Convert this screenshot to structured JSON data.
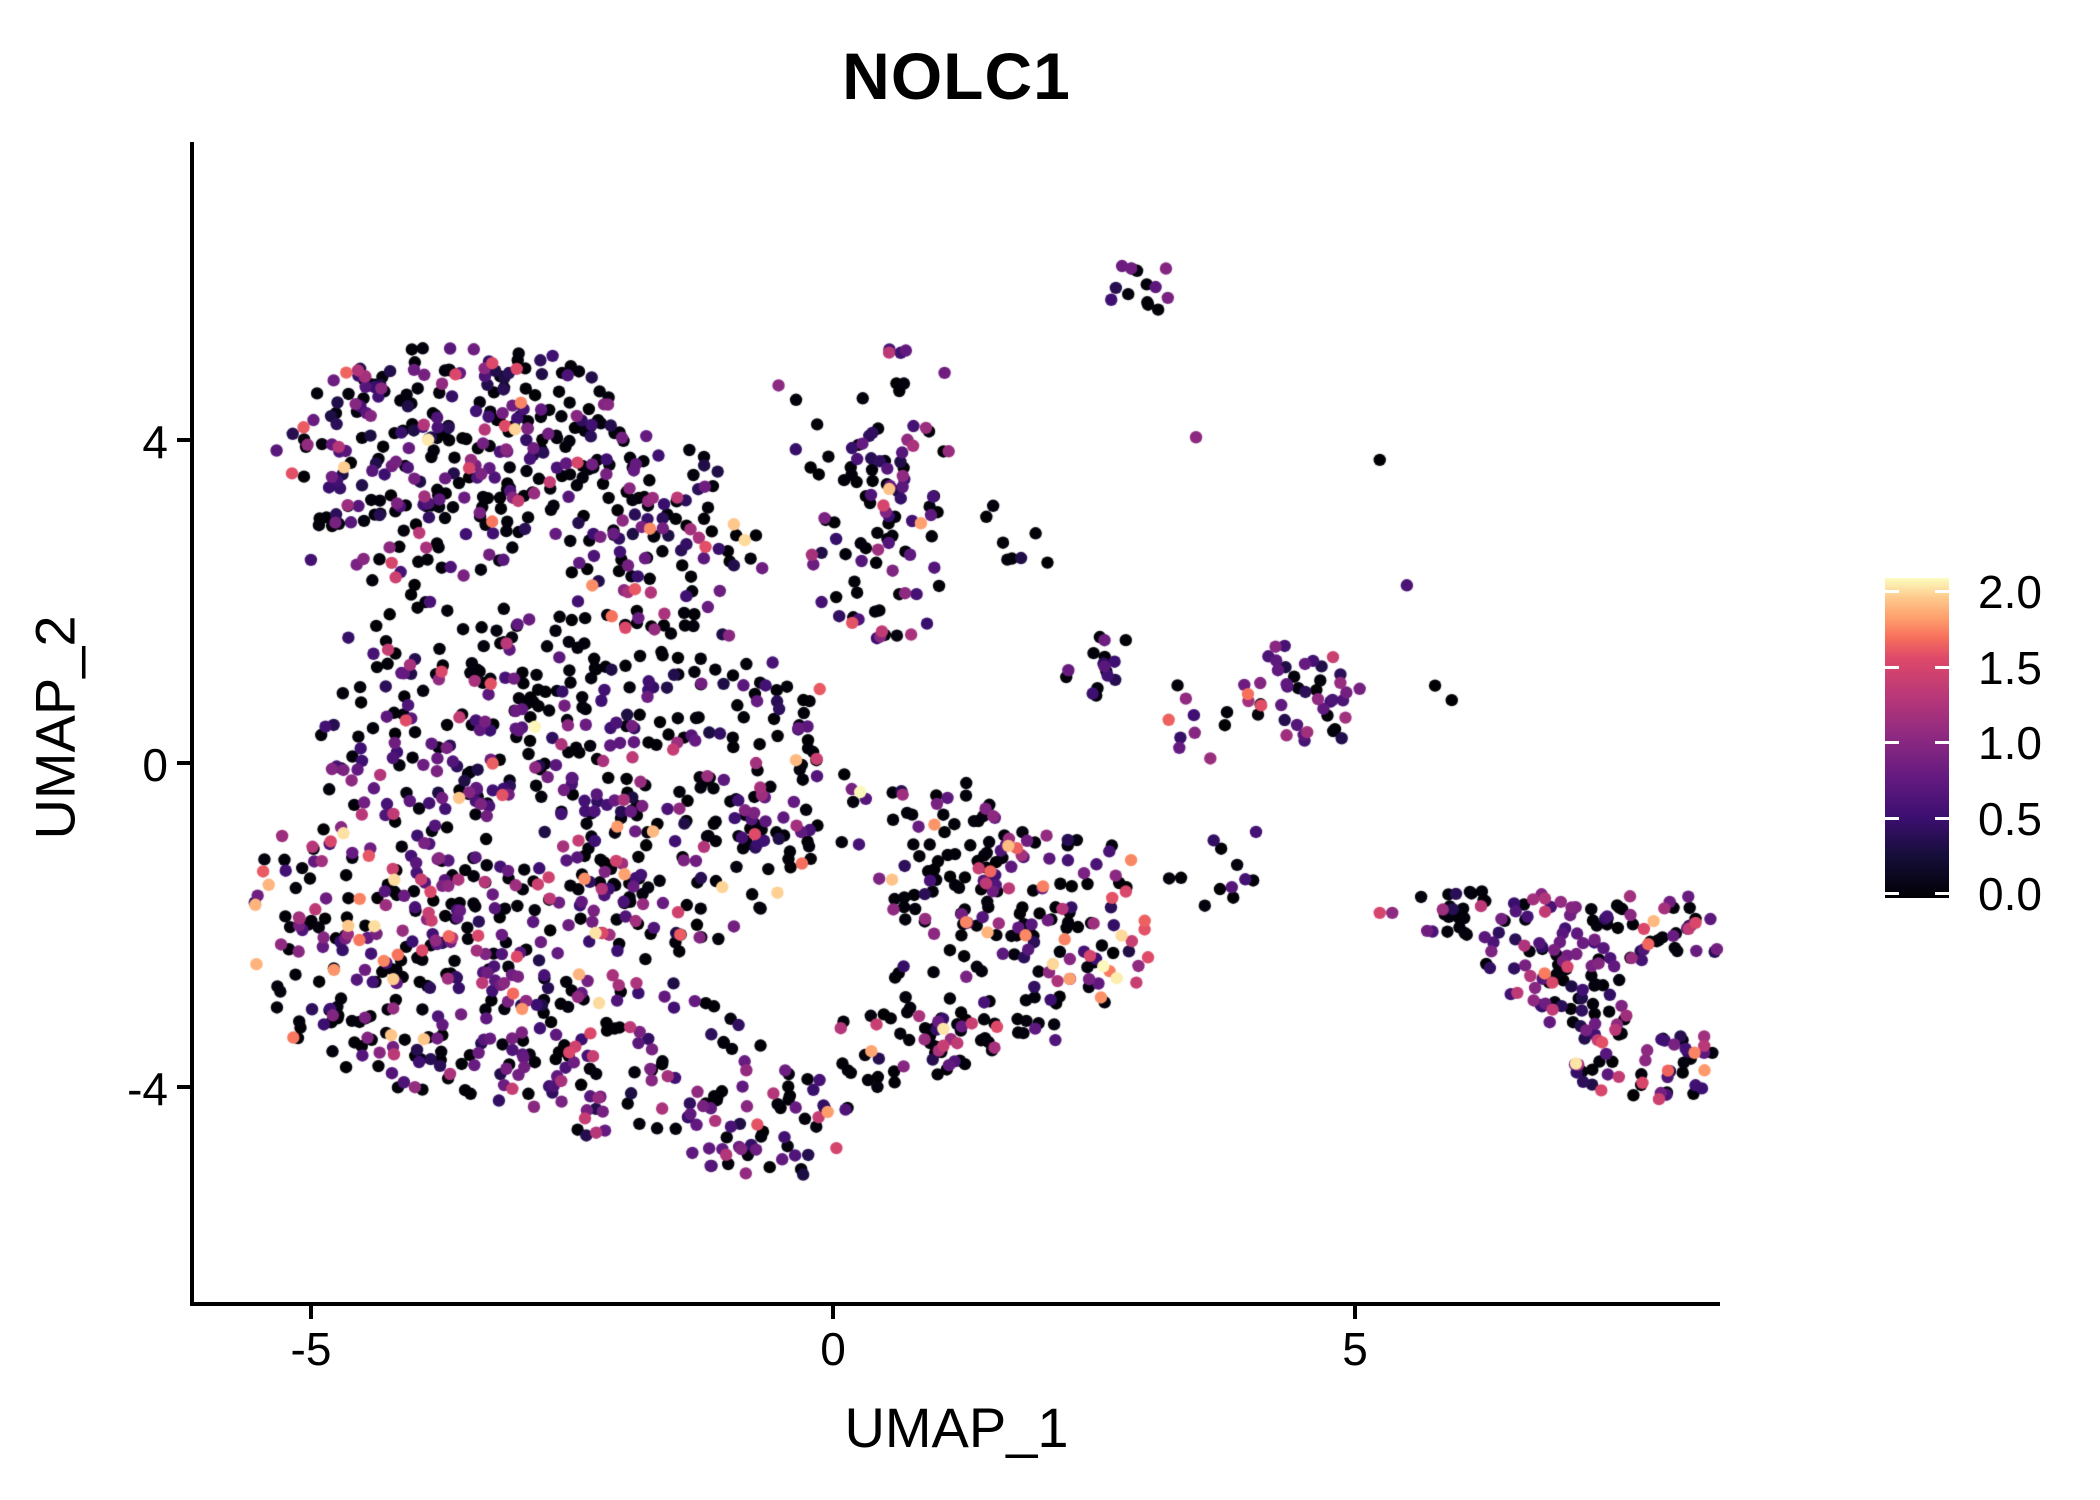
{
  "chart_data": {
    "type": "scatter",
    "title": "NOLC1",
    "xlabel": "UMAP_1",
    "ylabel": "UMAP_2",
    "xlim": [
      -6.13,
      8.5
    ],
    "ylim": [
      -6.66,
      7.68
    ],
    "x_ticks": [
      -5,
      0,
      5
    ],
    "x_tick_labels": [
      "-5",
      "0",
      "5"
    ],
    "y_ticks": [
      4,
      0,
      -4
    ],
    "y_tick_labels": [
      "4",
      "0",
      "-4"
    ],
    "grid": false,
    "legend_position": "right",
    "color_limits": [
      0,
      2
    ],
    "colorbar_tick_values": [
      2.0,
      1.5,
      1.0,
      0.5,
      0.0
    ],
    "colorbar_tick_labels": [
      "2.0",
      "1.5",
      "1.0",
      "0.5",
      "0.0"
    ],
    "colormap_name": "magma",
    "colormap": [
      [
        0.0,
        "#000004"
      ],
      [
        0.125,
        "#140e36"
      ],
      [
        0.25,
        "#3b0f70"
      ],
      [
        0.375,
        "#641a80"
      ],
      [
        0.5,
        "#8c2981"
      ],
      [
        0.625,
        "#b73779"
      ],
      [
        0.75,
        "#de4968"
      ],
      [
        0.815,
        "#f7705c"
      ],
      [
        0.875,
        "#fe9f6d"
      ],
      [
        0.94,
        "#feca8d"
      ],
      [
        1.0,
        "#fcfdbf"
      ]
    ],
    "marker_radius": 6.2,
    "seed": 1337,
    "mixes": {
      "default": [
        [
          0.53,
          0,
          0.05
        ],
        [
          0.1,
          0.3,
          0.5
        ],
        [
          0.22,
          0.5,
          0.9
        ],
        [
          0.09,
          0.9,
          1.3
        ],
        [
          0.04,
          1.3,
          1.7
        ],
        [
          0.02,
          1.7,
          2.0
        ]
      ],
      "purpleMid": [
        [
          0.38,
          0,
          0.05
        ],
        [
          0.12,
          0.3,
          0.5
        ],
        [
          0.3,
          0.5,
          0.9
        ],
        [
          0.13,
          0.9,
          1.3
        ],
        [
          0.05,
          1.3,
          1.7
        ],
        [
          0.02,
          1.7,
          2.0
        ]
      ],
      "purpleHeavy": [
        [
          0.22,
          0,
          0.05
        ],
        [
          0.15,
          0.3,
          0.5
        ],
        [
          0.35,
          0.5,
          0.9
        ],
        [
          0.18,
          0.9,
          1.3
        ],
        [
          0.08,
          1.3,
          1.7
        ],
        [
          0.02,
          1.7,
          2.0
        ]
      ],
      "warmEdge": [
        [
          0.45,
          0,
          0.05
        ],
        [
          0.08,
          0.3,
          0.5
        ],
        [
          0.22,
          0.5,
          0.9
        ],
        [
          0.12,
          0.9,
          1.3
        ],
        [
          0.09,
          1.3,
          1.7
        ],
        [
          0.04,
          1.7,
          2.0
        ]
      ],
      "warmHot": [
        [
          0.3,
          0,
          0.05
        ],
        [
          0.05,
          0.3,
          0.5
        ],
        [
          0.15,
          0.5,
          0.9
        ],
        [
          0.15,
          0.9,
          1.3
        ],
        [
          0.25,
          1.3,
          1.7
        ],
        [
          0.1,
          1.7,
          2.0
        ]
      ],
      "blackish": [
        [
          0.62,
          0,
          0.05
        ],
        [
          0.08,
          0.3,
          0.5
        ],
        [
          0.15,
          0.5,
          0.9
        ],
        [
          0.08,
          0.9,
          1.3
        ],
        [
          0.05,
          1.3,
          1.7
        ],
        [
          0.02,
          1.7,
          2.0
        ]
      ],
      "sparseMix": [
        [
          0.65,
          0,
          0.05
        ],
        [
          0.1,
          0.3,
          0.5
        ],
        [
          0.18,
          0.5,
          0.9
        ],
        [
          0.05,
          0.9,
          1.3
        ],
        [
          0.02,
          1.3,
          1.7
        ]
      ],
      "midMix": [
        [
          0.45,
          0,
          0.05
        ],
        [
          0.15,
          0.3,
          0.5
        ],
        [
          0.25,
          0.5,
          0.9
        ],
        [
          0.15,
          0.9,
          1.3
        ]
      ],
      "mostlyBlack": [
        [
          0.78,
          0,
          0.05
        ],
        [
          0.08,
          0.3,
          0.5
        ],
        [
          0.12,
          0.5,
          0.9
        ],
        [
          0.02,
          0.9,
          1.3
        ]
      ]
    },
    "clusters": [
      {
        "x": -3.48,
        "y": 4.49,
        "rx": 1.44,
        "ry": 0.68,
        "n": 130,
        "mix": "default"
      },
      {
        "x": -2.61,
        "y": 3.5,
        "rx": 1.53,
        "ry": 0.74,
        "n": 120,
        "mix": "default"
      },
      {
        "x": -3.96,
        "y": 3.0,
        "rx": 1.15,
        "ry": 0.87,
        "n": 80,
        "mix": "default"
      },
      {
        "x": -4.63,
        "y": 3.87,
        "rx": 0.77,
        "ry": 0.99,
        "n": 40,
        "mix": "default"
      },
      {
        "x": -1.66,
        "y": 2.51,
        "rx": 0.96,
        "ry": 0.87,
        "n": 70,
        "mix": "default"
      },
      {
        "x": 0.45,
        "y": 2.51,
        "rx": 0.67,
        "ry": 1.11,
        "n": 60,
        "mix": "default"
      },
      {
        "x": 0.64,
        "y": 3.62,
        "rx": 0.48,
        "ry": 0.74,
        "n": 30,
        "mix": "midMix"
      },
      {
        "x": -3.0,
        "y": 1.52,
        "rx": 1.72,
        "ry": 0.62,
        "n": 45,
        "mix": "sparseMix"
      },
      {
        "x": -3.86,
        "y": 0.16,
        "rx": 1.15,
        "ry": 0.99,
        "n": 90,
        "mix": "purpleMid"
      },
      {
        "x": -2.61,
        "y": 0.04,
        "rx": 1.15,
        "ry": 0.87,
        "n": 80,
        "mix": "purpleMid"
      },
      {
        "x": -4.34,
        "y": -1.45,
        "rx": 1.25,
        "ry": 1.11,
        "n": 110,
        "mix": "warmEdge"
      },
      {
        "x": -2.9,
        "y": -1.94,
        "rx": 1.25,
        "ry": 1.11,
        "n": 110,
        "mix": "purpleMid"
      },
      {
        "x": -1.47,
        "y": -1.2,
        "rx": 1.15,
        "ry": 1.11,
        "n": 90,
        "mix": "default"
      },
      {
        "x": -0.51,
        "y": -0.46,
        "rx": 0.86,
        "ry": 0.87,
        "n": 60,
        "mix": "default"
      },
      {
        "x": -3.57,
        "y": -3.3,
        "rx": 1.34,
        "ry": 0.99,
        "n": 100,
        "mix": "purpleMid"
      },
      {
        "x": -1.94,
        "y": -3.67,
        "rx": 1.25,
        "ry": 0.99,
        "n": 90,
        "mix": "purpleMid"
      },
      {
        "x": -0.7,
        "y": -4.41,
        "rx": 0.86,
        "ry": 0.74,
        "n": 55,
        "mix": "purpleMid"
      },
      {
        "x": -4.82,
        "y": -2.68,
        "rx": 0.67,
        "ry": 0.87,
        "n": 45,
        "mix": "warmEdge"
      },
      {
        "x": -2.23,
        "y": 1.27,
        "rx": 1.44,
        "ry": 0.62,
        "n": 50,
        "mix": "sparseMix"
      },
      {
        "x": -0.89,
        "y": 0.78,
        "rx": 0.86,
        "ry": 0.62,
        "n": 40,
        "mix": "sparseMix"
      },
      {
        "x": 1.12,
        "y": -1.08,
        "rx": 0.86,
        "ry": 0.87,
        "n": 70,
        "mix": "blackish"
      },
      {
        "x": 2.08,
        "y": -1.69,
        "rx": 0.86,
        "ry": 0.87,
        "n": 70,
        "mix": "warmEdge"
      },
      {
        "x": 1.41,
        "y": -2.81,
        "rx": 0.96,
        "ry": 0.87,
        "n": 70,
        "mix": "blackish"
      },
      {
        "x": 0.64,
        "y": -3.55,
        "rx": 0.67,
        "ry": 0.62,
        "n": 35,
        "mix": "blackish"
      },
      {
        "x": 2.56,
        "y": -2.31,
        "rx": 0.48,
        "ry": 0.74,
        "n": 25,
        "mix": "warmHot"
      },
      {
        "x": 2.97,
        "y": 5.88,
        "rx": 0.31,
        "ry": 0.37,
        "n": 14,
        "mix": "midMix"
      },
      {
        "x": 0.83,
        "y": 4.92,
        "rx": 0.38,
        "ry": 0.37,
        "n": 8,
        "mix": "midMix"
      },
      {
        "x": -0.03,
        "y": 4.12,
        "rx": 0.57,
        "ry": 0.74,
        "n": 10,
        "mix": "mostlyBlack"
      },
      {
        "x": 2.56,
        "y": 1.21,
        "rx": 0.38,
        "ry": 0.43,
        "n": 16,
        "mix": "mostlyBlack"
      },
      {
        "x": 1.7,
        "y": 2.76,
        "rx": 0.43,
        "ry": 0.56,
        "n": 8,
        "mix": "mostlyBlack"
      },
      {
        "x": 4.47,
        "y": 0.78,
        "rx": 0.57,
        "ry": 0.68,
        "n": 45,
        "mix": "purpleHeavy"
      },
      {
        "x": 3.42,
        "y": 0.53,
        "rx": 0.48,
        "ry": 0.49,
        "n": 10,
        "mix": "warmEdge"
      },
      {
        "x": 3.8,
        "y": -1.32,
        "rx": 0.77,
        "ry": 0.56,
        "n": 12,
        "mix": "mostlyBlack"
      },
      {
        "x": 6.01,
        "y": -1.88,
        "rx": 0.43,
        "ry": 0.35,
        "n": 25,
        "mix": "mostlyBlack"
      },
      {
        "x": 6.82,
        "y": -2.31,
        "rx": 0.67,
        "ry": 0.74,
        "n": 70,
        "mix": "purpleHeavy"
      },
      {
        "x": 7.83,
        "y": -2.06,
        "rx": 0.67,
        "ry": 0.43,
        "n": 45,
        "mix": "purpleMid"
      },
      {
        "x": 7.73,
        "y": -3.67,
        "rx": 0.7,
        "ry": 0.56,
        "n": 55,
        "mix": "purpleHeavy"
      },
      {
        "x": 7.25,
        "y": -2.93,
        "rx": 0.48,
        "ry": 0.49,
        "n": 20,
        "mix": "sparseMix"
      }
    ],
    "extra_points": [
      [
        3.48,
        4.03,
        1.0
      ],
      [
        5.24,
        3.75,
        0.0
      ],
      [
        5.77,
        0.96,
        0.0
      ],
      [
        5.93,
        0.78,
        0.0
      ],
      [
        -0.52,
        4.67,
        1.0
      ],
      [
        5.5,
        2.2,
        0.6
      ],
      [
        5.24,
        -1.85,
        1.45
      ],
      [
        5.36,
        -1.85,
        1.0
      ]
    ]
  }
}
